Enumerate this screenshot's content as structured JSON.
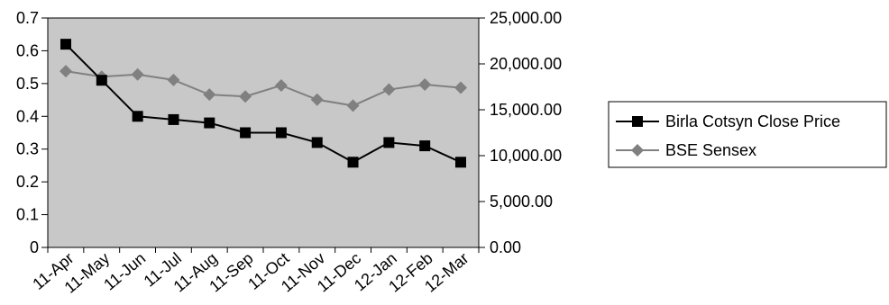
{
  "chart_data": {
    "type": "line",
    "categories": [
      "11-Apr",
      "11-May",
      "11-Jun",
      "11-Jul",
      "11-Aug",
      "11-Sep",
      "11-Oct",
      "11-Nov",
      "11-Dec",
      "12-Jan",
      "12-Feb",
      "12-Mar"
    ],
    "series": [
      {
        "name": "Birla Cotsyn Close Price",
        "axis": "left",
        "color": "#000000",
        "marker": "square",
        "values": [
          0.62,
          0.51,
          0.4,
          0.39,
          0.38,
          0.35,
          0.35,
          0.32,
          0.26,
          0.32,
          0.31,
          0.26
        ]
      },
      {
        "name": "BSE Sensex",
        "axis": "right",
        "color": "#808080",
        "marker": "diamond",
        "values": [
          19200,
          18600,
          18850,
          18250,
          16650,
          16450,
          17650,
          16100,
          15450,
          17200,
          17750,
          17400
        ]
      }
    ],
    "y_left": {
      "ylim": [
        0,
        0.7
      ],
      "ticks": [
        0,
        0.1,
        0.2,
        0.3,
        0.4,
        0.5,
        0.6,
        0.7
      ],
      "tick_labels": [
        "0",
        "0.1",
        "0.2",
        "0.3",
        "0.4",
        "0.5",
        "0.6",
        "0.7"
      ]
    },
    "y_right": {
      "ylim": [
        0,
        25000
      ],
      "ticks": [
        0,
        5000,
        10000,
        15000,
        20000,
        25000
      ],
      "tick_labels": [
        "0.00",
        "5,000.00",
        "10,000.00",
        "15,000.00",
        "20,000.00",
        "25,000.00"
      ]
    },
    "plot_background": "#c8c8c8",
    "grid": false,
    "legend_position": "right",
    "title": "",
    "xlabel": "",
    "ylabel": ""
  }
}
